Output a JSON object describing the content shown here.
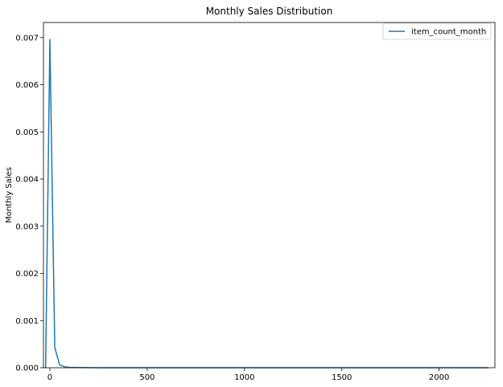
{
  "chart_data": {
    "type": "line",
    "title": "Monthly Sales Distribution",
    "xlabel": "",
    "ylabel": "Monthly Sales",
    "xlim": [
      -33,
      2287
    ],
    "ylim": [
      0,
      0.00732
    ],
    "xticks": [
      0,
      500,
      1000,
      1500,
      2000
    ],
    "yticks": [
      0.0,
      0.001,
      0.002,
      0.003,
      0.004,
      0.005,
      0.006,
      0.007
    ],
    "ytick_labels": [
      "0.000",
      "0.001",
      "0.002",
      "0.003",
      "0.004",
      "0.005",
      "0.006",
      "0.007"
    ],
    "grid": false,
    "legend_position": "top-right",
    "series": [
      {
        "name": "item_count_month",
        "color": "#1f77b4",
        "x": [
          -22,
          -2,
          0,
          25,
          50,
          75,
          100,
          150,
          250,
          500,
          1000,
          1500,
          2000,
          2253
        ],
        "y": [
          0,
          0.0063,
          0.00696,
          0.00043,
          6e-05,
          2e-05,
          8e-06,
          4e-06,
          1e-06,
          0,
          0,
          0,
          0,
          0
        ]
      }
    ]
  }
}
